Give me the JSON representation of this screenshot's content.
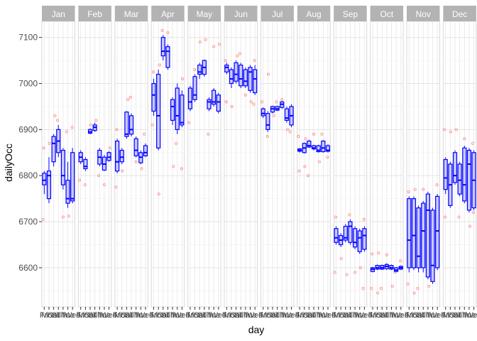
{
  "chart_data": {
    "type": "boxplot",
    "facet_by": "month",
    "ylabel": "dailyOcc",
    "xlabel": "day",
    "ylim": [
      6515,
      7135
    ],
    "y_ticks": [
      6600,
      6700,
      6800,
      6900,
      7000,
      7100
    ],
    "day_order": [
      "Fri",
      "Mon",
      "Sat",
      "Sun",
      "Thu",
      "Tue",
      "Wed"
    ],
    "x_tick_labels": [
      "Fri",
      "Mon",
      "Sat",
      "Sun",
      "Thu",
      "Tue",
      "Wed"
    ],
    "colors": {
      "box_fill": "#c9c9ff",
      "box_stroke": "#0000ff",
      "points": "#f8766d",
      "strip": "#b3b3b3",
      "panel_bg": "#ffffff",
      "grid": "#e6e6e6"
    },
    "panels": [
      {
        "month": "Jan",
        "boxes": [
          [
            6760,
            6780,
            6790,
            6805,
            6810
          ],
          [
            6740,
            6750,
            6800,
            6810,
            6840
          ],
          [
            6820,
            6830,
            6870,
            6885,
            6890
          ],
          [
            6840,
            6850,
            6875,
            6900,
            6910
          ],
          [
            6770,
            6780,
            6800,
            6855,
            6860
          ],
          [
            6730,
            6740,
            6750,
            6790,
            6830
          ],
          [
            6740,
            6745,
            6750,
            6850,
            6860
          ]
        ],
        "points": [
          [
            0,
            6705
          ],
          [
            0,
            6860
          ],
          [
            1,
            6870
          ],
          [
            2,
            6930
          ],
          [
            3,
            6920
          ],
          [
            4,
            6710
          ],
          [
            5,
            6712
          ],
          [
            5,
            6895
          ],
          [
            6,
            6905
          ]
        ]
      },
      {
        "month": "Feb",
        "boxes": [
          [
            6825,
            6830,
            6840,
            6850,
            6855
          ],
          [
            6810,
            6815,
            6820,
            6835,
            6840
          ],
          [
            6890,
            6892,
            6895,
            6900,
            6903
          ],
          [
            6895,
            6898,
            6905,
            6910,
            6915
          ],
          [
            6820,
            6825,
            6840,
            6855,
            6860
          ],
          [
            6810,
            6812,
            6825,
            6840,
            6845
          ],
          [
            6830,
            6833,
            6840,
            6850,
            6853
          ]
        ],
        "points": [
          [
            0,
            6790
          ],
          [
            1,
            6780
          ],
          [
            2,
            6910
          ],
          [
            3,
            6920
          ],
          [
            4,
            6800
          ],
          [
            5,
            6780
          ],
          [
            6,
            6860
          ]
        ]
      },
      {
        "month": "Mar",
        "boxes": [
          [
            6805,
            6810,
            6830,
            6875,
            6880
          ],
          [
            6825,
            6830,
            6840,
            6855,
            6860
          ],
          [
            6880,
            6885,
            6890,
            6938,
            6940
          ],
          [
            6885,
            6890,
            6900,
            6930,
            6935
          ],
          [
            6840,
            6843,
            6855,
            6880,
            6885
          ],
          [
            6825,
            6828,
            6840,
            6850,
            6855
          ],
          [
            6840,
            6843,
            6850,
            6865,
            6870
          ]
        ],
        "points": [
          [
            0,
            6775
          ],
          [
            0,
            6900
          ],
          [
            1,
            6810
          ],
          [
            2,
            6965
          ],
          [
            3,
            6970
          ],
          [
            4,
            6830
          ],
          [
            5,
            6815
          ],
          [
            6,
            6890
          ]
        ]
      },
      {
        "month": "Apr",
        "boxes": [
          [
            6930,
            6940,
            6975,
            7000,
            7010
          ],
          [
            6855,
            6860,
            6930,
            7020,
            7030
          ],
          [
            7050,
            7060,
            7070,
            7100,
            7105
          ],
          [
            7030,
            7035,
            7070,
            7080,
            7085
          ],
          [
            6910,
            6920,
            6950,
            6965,
            6970
          ],
          [
            6890,
            6900,
            6930,
            6990,
            7000
          ],
          [
            6905,
            6910,
            6915,
            6975,
            6985
          ]
        ],
        "points": [
          [
            0,
            6910
          ],
          [
            0,
            7025
          ],
          [
            1,
            6760
          ],
          [
            1,
            7040
          ],
          [
            2,
            7115
          ],
          [
            3,
            7110
          ],
          [
            4,
            6820
          ],
          [
            5,
            6870
          ],
          [
            6,
            6815
          ],
          [
            6,
            7010
          ]
        ]
      },
      {
        "month": "May",
        "boxes": [
          [
            6940,
            6945,
            6960,
            6990,
            6995
          ],
          [
            6960,
            6965,
            6975,
            7015,
            7020
          ],
          [
            7010,
            7020,
            7025,
            7040,
            7045
          ],
          [
            7015,
            7020,
            7035,
            7050,
            7052
          ],
          [
            6940,
            6945,
            6960,
            6965,
            6970
          ],
          [
            6950,
            6955,
            6960,
            6985,
            6990
          ],
          [
            6935,
            6940,
            6960,
            6975,
            6980
          ]
        ],
        "points": [
          [
            0,
            6915
          ],
          [
            1,
            7030
          ],
          [
            2,
            7090
          ],
          [
            3,
            7095
          ],
          [
            4,
            6890
          ],
          [
            5,
            7080
          ],
          [
            6,
            7085
          ]
        ]
      },
      {
        "month": "Jun",
        "boxes": [
          [
            7020,
            7025,
            7035,
            7040,
            7045
          ],
          [
            6990,
            7000,
            7010,
            7030,
            7035
          ],
          [
            7000,
            7005,
            7020,
            7045,
            7050
          ],
          [
            6990,
            6995,
            7010,
            7040,
            7045
          ],
          [
            6990,
            6995,
            7005,
            7030,
            7035
          ],
          [
            6980,
            6985,
            7025,
            7035,
            7040
          ],
          [
            6975,
            6980,
            7010,
            7030,
            7040
          ]
        ],
        "points": [
          [
            0,
            7050
          ],
          [
            0,
            6960
          ],
          [
            1,
            6950
          ],
          [
            2,
            7060
          ],
          [
            3,
            7065
          ],
          [
            4,
            6975
          ],
          [
            5,
            6960
          ],
          [
            6,
            6955
          ],
          [
            6,
            7050
          ]
        ]
      },
      {
        "month": "Jul",
        "boxes": [
          [
            6925,
            6930,
            6935,
            6945,
            6948
          ],
          [
            6895,
            6900,
            6910,
            6935,
            6940
          ],
          [
            6935,
            6938,
            6945,
            6950,
            6952
          ],
          [
            6940,
            6942,
            6945,
            6950,
            6952
          ],
          [
            6945,
            6948,
            6955,
            6960,
            6962
          ],
          [
            6915,
            6920,
            6925,
            6945,
            6950
          ],
          [
            6905,
            6910,
            6930,
            6950,
            6955
          ]
        ],
        "points": [
          [
            0,
            6960
          ],
          [
            1,
            6885
          ],
          [
            1,
            7020
          ],
          [
            2,
            6930
          ],
          [
            3,
            6960
          ],
          [
            4,
            6965
          ],
          [
            5,
            6900
          ],
          [
            6,
            6895
          ]
        ]
      },
      {
        "month": "Aug",
        "boxes": [
          [
            6850,
            6853,
            6855,
            6858,
            6860
          ],
          [
            6848,
            6850,
            6860,
            6870,
            6872
          ],
          [
            6860,
            6862,
            6865,
            6875,
            6878
          ],
          [
            6855,
            6858,
            6860,
            6865,
            6867
          ],
          [
            6850,
            6852,
            6855,
            6865,
            6867
          ],
          [
            6850,
            6852,
            6860,
            6875,
            6877
          ],
          [
            6850,
            6853,
            6855,
            6865,
            6868
          ]
        ],
        "points": [
          [
            0,
            6885
          ],
          [
            0,
            6810
          ],
          [
            1,
            6820
          ],
          [
            1,
            6880
          ],
          [
            2,
            6800
          ],
          [
            3,
            6890
          ],
          [
            4,
            6830
          ],
          [
            5,
            6890
          ],
          [
            6,
            6840
          ]
        ]
      },
      {
        "month": "Sep",
        "boxes": [
          [
            6650,
            6655,
            6665,
            6685,
            6690
          ],
          [
            6645,
            6650,
            6660,
            6670,
            6675
          ],
          [
            6655,
            6660,
            6665,
            6690,
            6695
          ],
          [
            6650,
            6655,
            6690,
            6700,
            6705
          ],
          [
            6640,
            6645,
            6655,
            6685,
            6690
          ],
          [
            6630,
            6635,
            6665,
            6680,
            6685
          ],
          [
            6635,
            6640,
            6670,
            6685,
            6690
          ]
        ],
        "points": [
          [
            0,
            6590
          ],
          [
            0,
            6710
          ],
          [
            1,
            6620
          ],
          [
            2,
            6585
          ],
          [
            3,
            6715
          ],
          [
            4,
            6590
          ],
          [
            5,
            6600
          ],
          [
            6,
            6555
          ],
          [
            6,
            6705
          ]
        ]
      },
      {
        "month": "Oct",
        "boxes": [
          [
            6590,
            6592,
            6597,
            6600,
            6602
          ],
          [
            6595,
            6597,
            6600,
            6605,
            6607
          ],
          [
            6595,
            6597,
            6600,
            6605,
            6607
          ],
          [
            6595,
            6598,
            6603,
            6607,
            6610
          ],
          [
            6595,
            6597,
            6600,
            6605,
            6607
          ],
          [
            6590,
            6592,
            6595,
            6600,
            6602
          ],
          [
            6595,
            6597,
            6600,
            6603,
            6605
          ]
        ],
        "points": [
          [
            0,
            6555
          ],
          [
            0,
            6630
          ],
          [
            1,
            6545
          ],
          [
            1,
            6632
          ],
          [
            2,
            6555
          ],
          [
            3,
            6628
          ],
          [
            4,
            6560
          ],
          [
            5,
            6590
          ],
          [
            6,
            6615
          ]
        ]
      },
      {
        "month": "Nov",
        "boxes": [
          [
            6590,
            6600,
            6660,
            6750,
            6755
          ],
          [
            6595,
            6600,
            6670,
            6750,
            6755
          ],
          [
            6590,
            6600,
            6625,
            6730,
            6735
          ],
          [
            6590,
            6600,
            6680,
            6740,
            6745
          ],
          [
            6575,
            6580,
            6725,
            6760,
            6765
          ],
          [
            6565,
            6570,
            6605,
            6725,
            6730
          ],
          [
            6595,
            6600,
            6680,
            6755,
            6760
          ]
        ],
        "points": [
          [
            0,
            6565
          ],
          [
            0,
            6765
          ],
          [
            1,
            6545
          ],
          [
            1,
            6770
          ],
          [
            2,
            6555
          ],
          [
            3,
            6770
          ],
          [
            4,
            6560
          ],
          [
            5,
            6575
          ],
          [
            6,
            6780
          ]
        ]
      },
      {
        "month": "Dec",
        "boxes": [
          [
            6760,
            6770,
            6795,
            6835,
            6840
          ],
          [
            6730,
            6735,
            6780,
            6825,
            6830
          ],
          [
            6780,
            6785,
            6800,
            6850,
            6855
          ],
          [
            6755,
            6760,
            6790,
            6825,
            6830
          ],
          [
            6740,
            6745,
            6780,
            6860,
            6865
          ],
          [
            6720,
            6725,
            6825,
            6855,
            6860
          ],
          [
            6725,
            6730,
            6790,
            6850,
            6855
          ]
        ],
        "points": [
          [
            0,
            6900
          ],
          [
            0,
            6710
          ],
          [
            1,
            6895
          ],
          [
            2,
            6900
          ],
          [
            3,
            6710
          ],
          [
            4,
            6880
          ],
          [
            5,
            6690
          ],
          [
            6,
            6870
          ],
          [
            6,
            6720
          ]
        ]
      }
    ]
  }
}
